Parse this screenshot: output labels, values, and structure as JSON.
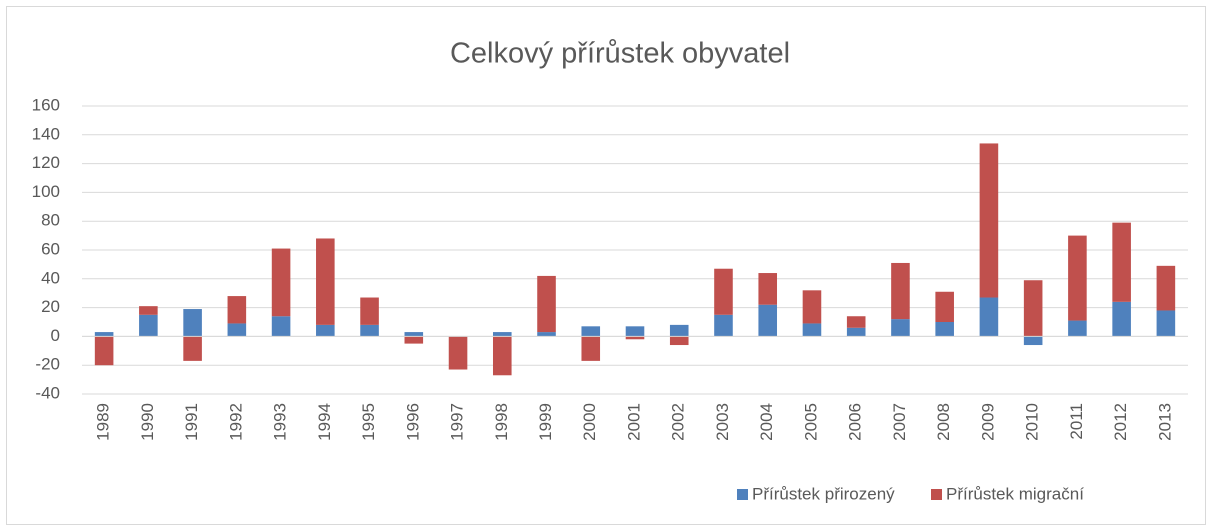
{
  "chart_data": {
    "type": "stacked_bar",
    "title": "Celkový přírůstek obyvatel",
    "categories": [
      "1989",
      "1990",
      "1991",
      "1992",
      "1993",
      "1994",
      "1995",
      "1996",
      "1997",
      "1998",
      "1999",
      "2000",
      "2001",
      "2002",
      "2003",
      "2004",
      "2005",
      "2006",
      "2007",
      "2008",
      "2009",
      "2010",
      "2011",
      "2012",
      "2013"
    ],
    "series": [
      {
        "name": "Přírůstek přirozený",
        "color": "#4f81bd",
        "values": [
          3,
          15,
          19,
          9,
          14,
          8,
          8,
          3,
          0,
          3,
          3,
          7,
          7,
          8,
          15,
          22,
          9,
          6,
          12,
          10,
          27,
          -6,
          11,
          24,
          18
        ]
      },
      {
        "name": "Přírůstek migrační",
        "color": "#c0504d",
        "values": [
          -20,
          6,
          -17,
          19,
          47,
          60,
          19,
          -5,
          -23,
          -27,
          39,
          -17,
          -2,
          -6,
          32,
          22,
          23,
          8,
          39,
          21,
          107,
          39,
          59,
          55,
          31
        ]
      }
    ],
    "ylim": [
      -40,
      160
    ],
    "yticks": [
      -40,
      -20,
      0,
      20,
      40,
      60,
      80,
      100,
      120,
      140,
      160
    ],
    "grid": true,
    "legend": "bottom"
  }
}
